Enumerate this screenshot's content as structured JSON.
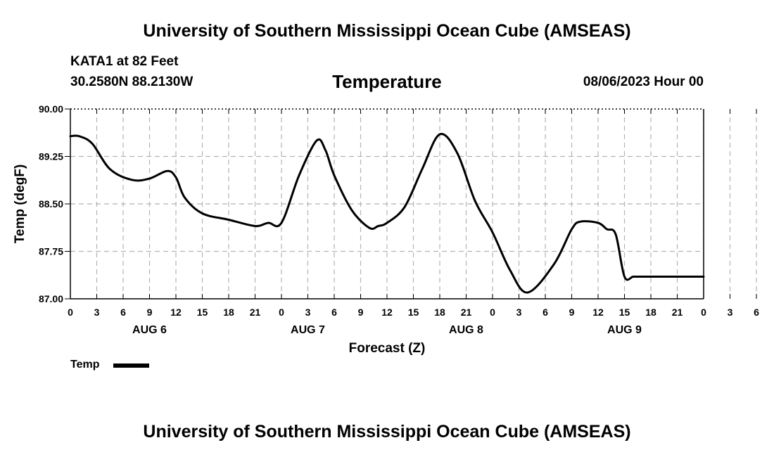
{
  "header": {
    "top_title": "University of Southern Mississippi Ocean Cube (AMSEAS)",
    "station": "KATA1 at 82 Feet",
    "coords": "30.2580N  88.2130W",
    "chart_title": "Temperature",
    "datetime": "08/06/2023 Hour 00"
  },
  "footer": {
    "bottom_title": "University of Southern Mississippi Ocean Cube (AMSEAS)"
  },
  "legend": {
    "label": "Temp"
  },
  "chart_data": {
    "type": "line",
    "title": "Temperature",
    "xlabel": "Forecast (Z)",
    "ylabel": "Temp (degF)",
    "xlim": [
      0,
      72
    ],
    "ylim": [
      87.0,
      90.0
    ],
    "y_ticks": [
      "87.00",
      "87.75",
      "88.50",
      "89.25",
      "90.00"
    ],
    "x_tick_labels": [
      "0",
      "3",
      "6",
      "9",
      "12",
      "15",
      "18",
      "21",
      "0",
      "3",
      "6",
      "9",
      "12",
      "15",
      "18",
      "21",
      "0",
      "3",
      "6",
      "9",
      "12",
      "15",
      "18",
      "21",
      "0",
      "3",
      "6",
      "9",
      "12",
      "15",
      "18",
      "21",
      "0"
    ],
    "day_labels": [
      {
        "label": "AUG 6",
        "x": 9
      },
      {
        "label": "AUG 7",
        "x": 27
      },
      {
        "label": "AUG 8",
        "x": 45
      },
      {
        "label": "AUG 9",
        "x": 63
      }
    ],
    "grid": true,
    "series": [
      {
        "name": "Temp",
        "color": "#000000",
        "x": [
          0,
          1,
          2.5,
          4.5,
          7,
          9,
          11,
          12,
          13,
          15,
          18,
          21,
          22.5,
          24,
          26,
          28,
          29,
          30,
          32,
          34,
          35,
          36,
          38,
          40,
          42,
          44,
          46,
          48,
          50,
          52,
          55,
          57,
          58,
          60,
          61,
          62,
          63,
          64,
          65,
          67,
          68,
          70,
          71,
          72
        ],
        "y": [
          89.57,
          89.57,
          89.45,
          89.05,
          88.88,
          88.9,
          89.02,
          88.92,
          88.6,
          88.35,
          88.25,
          88.15,
          88.2,
          88.2,
          88.95,
          89.5,
          89.35,
          88.95,
          88.4,
          88.12,
          88.15,
          88.2,
          88.45,
          89.05,
          89.6,
          89.3,
          88.55,
          88.05,
          87.45,
          87.1,
          87.55,
          88.1,
          88.22,
          88.2,
          88.1,
          88.02,
          87.35,
          87.35,
          87.35,
          87.35,
          87.35,
          87.35,
          87.35,
          87.35
        ]
      }
    ]
  }
}
